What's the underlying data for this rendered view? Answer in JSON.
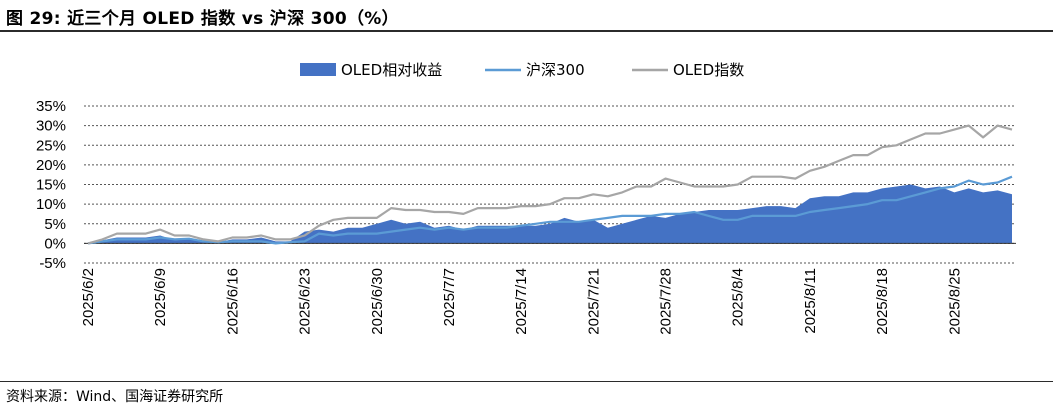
{
  "header": {
    "title": "图 29:  近三个月 OLED 指数 vs 沪深 300（%）"
  },
  "footer": {
    "source": "资料来源：Wind、国海证券研究所"
  },
  "chart_data": {
    "type": "line",
    "title": "",
    "xlabel": "",
    "ylabel": "",
    "ylim": [
      -5,
      35
    ],
    "yticks": [
      "35%",
      "30%",
      "25%",
      "20%",
      "15%",
      "10%",
      "5%",
      "0%",
      "-5%"
    ],
    "grid": true,
    "legend_position": "top",
    "categories": [
      "2025/6/2",
      "2025/6/3",
      "2025/6/4",
      "2025/6/5",
      "2025/6/6",
      "2025/6/9",
      "2025/6/10",
      "2025/6/11",
      "2025/6/12",
      "2025/6/13",
      "2025/6/16",
      "2025/6/17",
      "2025/6/18",
      "2025/6/19",
      "2025/6/20",
      "2025/6/23",
      "2025/6/24",
      "2025/6/25",
      "2025/6/26",
      "2025/6/27",
      "2025/6/30",
      "2025/7/1",
      "2025/7/2",
      "2025/7/3",
      "2025/7/4",
      "2025/7/7",
      "2025/7/8",
      "2025/7/9",
      "2025/7/10",
      "2025/7/11",
      "2025/7/14",
      "2025/7/15",
      "2025/7/16",
      "2025/7/17",
      "2025/7/18",
      "2025/7/21",
      "2025/7/22",
      "2025/7/23",
      "2025/7/24",
      "2025/7/25",
      "2025/7/28",
      "2025/7/29",
      "2025/7/30",
      "2025/7/31",
      "2025/8/1",
      "2025/8/4",
      "2025/8/5",
      "2025/8/6",
      "2025/8/7",
      "2025/8/8",
      "2025/8/11",
      "2025/8/12",
      "2025/8/13",
      "2025/8/14",
      "2025/8/15",
      "2025/8/18",
      "2025/8/19",
      "2025/8/20",
      "2025/8/21",
      "2025/8/22",
      "2025/8/25",
      "2025/8/26",
      "2025/8/27",
      "2025/8/28",
      "2025/8/29"
    ],
    "xtick_labels": [
      "2025/6/2",
      "2025/6/9",
      "2025/6/16",
      "2025/6/23",
      "2025/6/30",
      "2025/7/7",
      "2025/7/14",
      "2025/7/21",
      "2025/7/28",
      "2025/8/4",
      "2025/8/11",
      "2025/8/18",
      "2025/8/25"
    ],
    "series": [
      {
        "name": "OLED相对收益",
        "kind": "area",
        "color": "#4472C4",
        "values": [
          0,
          0.8,
          1.5,
          1.5,
          1.5,
          2,
          0.8,
          1,
          0.5,
          0.3,
          1,
          1,
          1.5,
          0.5,
          0.5,
          3,
          3.5,
          3,
          4,
          4,
          5,
          6,
          5,
          5.5,
          4,
          4.5,
          3.5,
          4.5,
          4.5,
          4.5,
          4.5,
          4.5,
          5,
          6.5,
          5.5,
          6,
          4,
          5,
          6,
          7,
          6.5,
          7.5,
          8,
          8.5,
          8.5,
          8.5,
          9,
          9.5,
          9.5,
          9,
          11.5,
          12,
          12,
          13,
          13,
          14,
          14.5,
          15,
          14,
          14.5,
          13,
          14,
          13,
          13.5,
          12.5
        ]
      },
      {
        "name": "沪深300",
        "kind": "line",
        "color": "#5B9BD5",
        "values": [
          0,
          0.5,
          1,
          1,
          1,
          1.5,
          1,
          1.2,
          0.5,
          0.3,
          0.5,
          0.5,
          0.5,
          0,
          0.3,
          0.5,
          2.5,
          2,
          2.5,
          2.5,
          2.5,
          3,
          3.5,
          4,
          3.5,
          4,
          3.5,
          4,
          4,
          4,
          4.5,
          5,
          5.5,
          5.5,
          5.5,
          6,
          6.5,
          7,
          7,
          7,
          7.5,
          7.5,
          8,
          7,
          6,
          6,
          7,
          7,
          7,
          7,
          8,
          8.5,
          9,
          9.5,
          10,
          11,
          11,
          12,
          13,
          14,
          14.5,
          16,
          15,
          15.5,
          17
        ]
      },
      {
        "name": "OLED指数",
        "kind": "line",
        "color": "#A6A6A6",
        "values": [
          0,
          1,
          2.5,
          2.5,
          2.5,
          3.5,
          2,
          2,
          1,
          0.5,
          1.5,
          1.5,
          2,
          1,
          1,
          2,
          4.5,
          6,
          6.5,
          6.5,
          6.5,
          9,
          8.5,
          8.5,
          8,
          8,
          7.5,
          9,
          9,
          9,
          9.5,
          9.5,
          10,
          11.5,
          11.5,
          12.5,
          12,
          13,
          14.5,
          14.5,
          16.5,
          15.5,
          14.5,
          14.5,
          14.5,
          15,
          17,
          17,
          17,
          16.5,
          18.5,
          19.5,
          21,
          22.5,
          22.5,
          24.5,
          25,
          26.5,
          28,
          28,
          29,
          30,
          27,
          30,
          29
        ]
      }
    ]
  }
}
